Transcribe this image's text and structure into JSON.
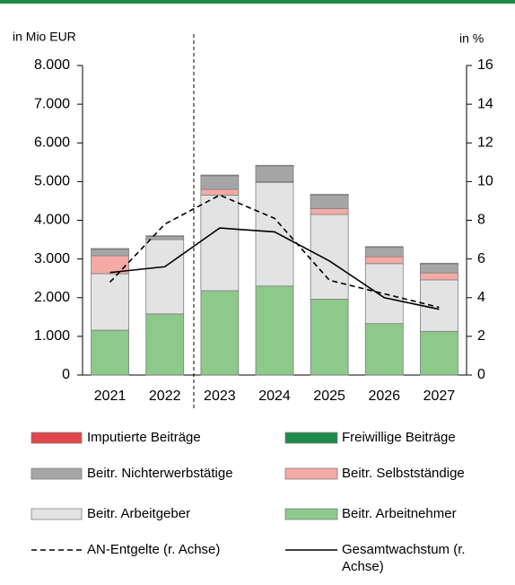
{
  "chart_data": {
    "type": "bar",
    "stacked": true,
    "y_label": "in Mio EUR",
    "y2_label": "in %",
    "categories": [
      "2021",
      "2022",
      "2023",
      "2024",
      "2025",
      "2026",
      "2027"
    ],
    "series": [
      {
        "name": "Imputierte Beiträge",
        "color": "#e0474c",
        "values": [
          10,
          10,
          10,
          10,
          10,
          10,
          10
        ]
      },
      {
        "name": "Freiwillige Beiträge",
        "color": "#1e8a4a",
        "values": [
          10,
          10,
          10,
          10,
          10,
          10,
          10
        ]
      },
      {
        "name": "Beitr. Nichterwerbstätige",
        "color": "#a6a6a6",
        "values": [
          165,
          80,
          350,
          400,
          350,
          240,
          230
        ]
      },
      {
        "name": "Beitr. Selbstständige",
        "color": "#f4aaa5",
        "values": [
          465,
          0,
          150,
          20,
          150,
          180,
          180
        ]
      },
      {
        "name": "Beitr. Arbeitgeber",
        "color": "#e3e3e3",
        "values": [
          1460,
          1920,
          2470,
          2680,
          2190,
          1550,
          1330
        ]
      },
      {
        "name": "Beitr. Arbeitnehmer",
        "color": "#8cc98a",
        "values": [
          1160,
          1580,
          2180,
          2300,
          1960,
          1330,
          1130
        ]
      },
      {
        "name": "AN-Entgelte (r. Achse)",
        "type": "line",
        "axis": "y2",
        "line_style": "dashed",
        "color": "#000000",
        "values": [
          4.8,
          7.8,
          9.3,
          8.1,
          4.9,
          4.2,
          3.5
        ]
      },
      {
        "name": "Gesamtwachstum (r. Achse)",
        "type": "line",
        "axis": "y2",
        "line_style": "solid",
        "color": "#000000",
        "values": [
          5.3,
          5.6,
          7.6,
          7.4,
          5.9,
          4.0,
          3.4
        ]
      }
    ],
    "ylim": [
      0,
      8000
    ],
    "yticks": [
      0,
      {
        "value": 1000,
        "label": "1.000"
      },
      {
        "value": 2000,
        "label": "2.000"
      },
      {
        "value": 3000,
        "label": "3.000"
      },
      {
        "value": 4000,
        "label": "4.000"
      },
      {
        "value": 5000,
        "label": "5.000"
      },
      {
        "value": 6000,
        "label": "6.000"
      },
      {
        "value": 7000,
        "label": "7.000"
      },
      {
        "value": 8000,
        "label": "8.000"
      }
    ],
    "y2lim": [
      0,
      16
    ],
    "y2ticks": [
      0,
      2,
      4,
      6,
      8,
      10,
      12,
      14,
      16
    ]
  }
}
